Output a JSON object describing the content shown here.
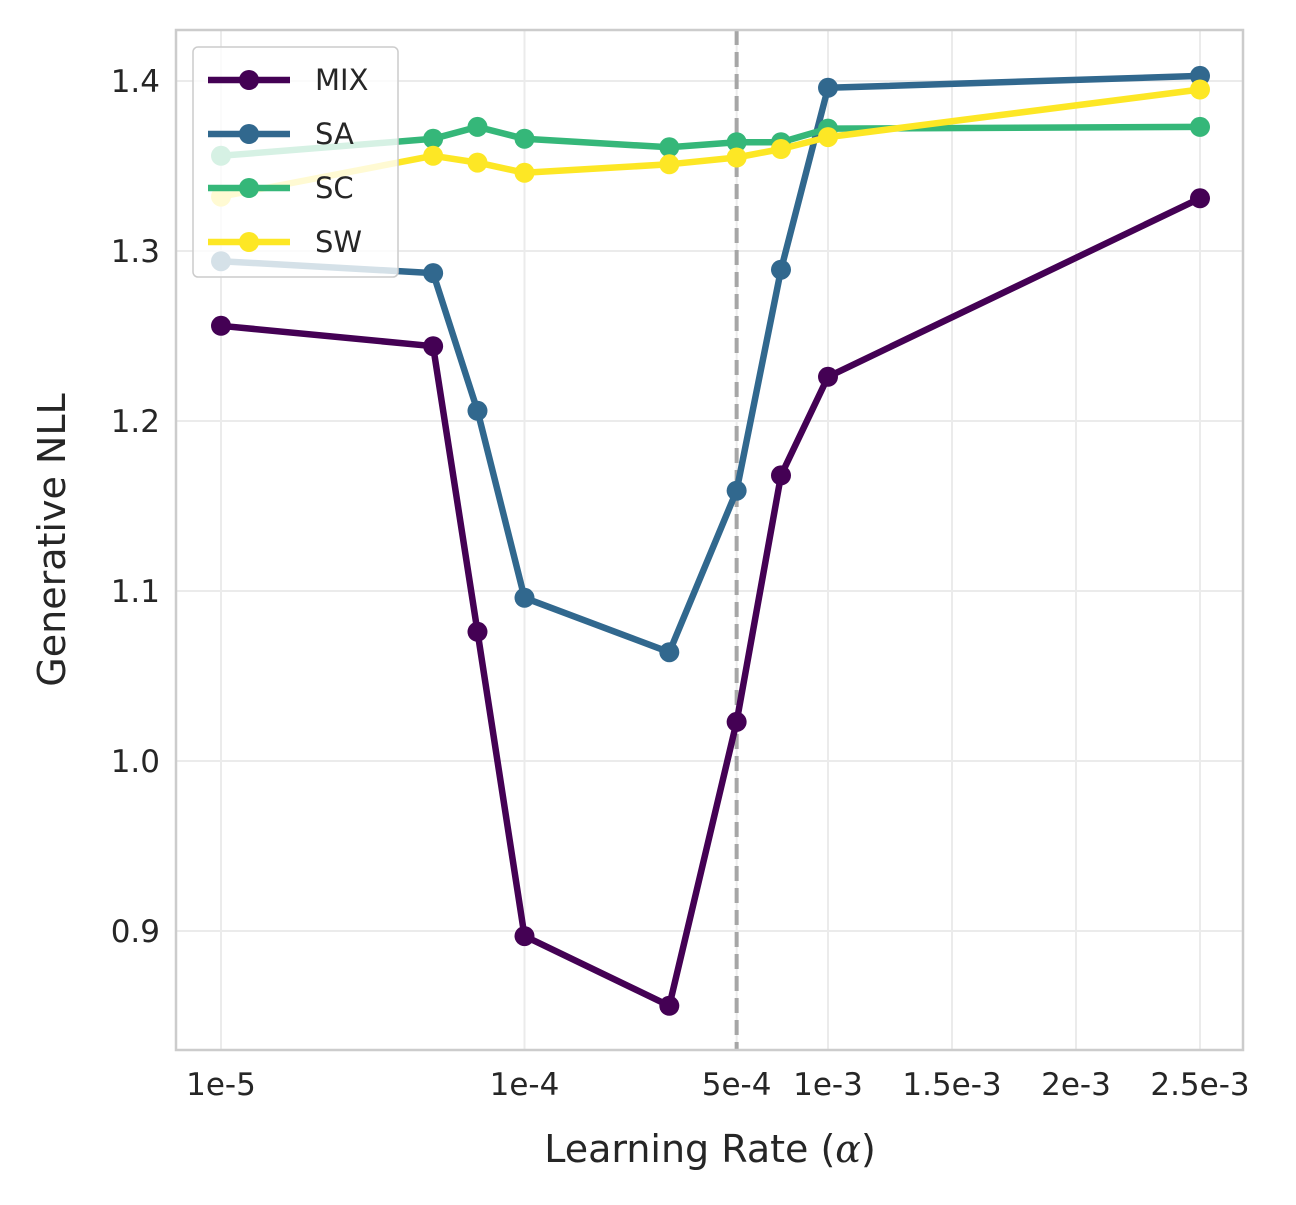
{
  "chart_data": {
    "type": "line",
    "title": "",
    "xlabel": "Learning Rate (α)",
    "xlabel_prefix": "Learning Rate (",
    "xlabel_symbol": "α",
    "xlabel_suffix": ")",
    "ylabel": "Generative NLL",
    "ylim": [
      0.83,
      1.43
    ],
    "yticks": [
      0.9,
      1.0,
      1.1,
      1.2,
      1.3,
      1.4
    ],
    "ytick_labels": [
      "0.9",
      "1.0",
      "1.1",
      "1.2",
      "1.3",
      "1.4"
    ],
    "x": [
      1e-05,
      5e-05,
      7e-05,
      0.0001,
      0.0003,
      0.0005,
      0.0007,
      0.001,
      0.0025
    ],
    "xticks": [
      1e-05,
      0.0001,
      0.0005,
      0.001,
      0.0015,
      0.002,
      0.0025
    ],
    "xtick_labels": [
      "1e-5",
      "1e-4",
      "5e-4",
      "1e-3",
      "1.5e-3",
      "2e-3",
      "2.5e-3"
    ],
    "vline": 0.0005,
    "grid": true,
    "legend_position": "top-left",
    "series": [
      {
        "name": "MIX",
        "color": "#440154",
        "values": [
          1.256,
          1.244,
          1.076,
          0.897,
          0.856,
          1.023,
          1.168,
          1.226,
          1.331
        ]
      },
      {
        "name": "SA",
        "color": "#31688e",
        "values": [
          1.294,
          1.287,
          1.206,
          1.096,
          1.064,
          1.159,
          1.289,
          1.396,
          1.403
        ]
      },
      {
        "name": "SC",
        "color": "#35b779",
        "values": [
          1.356,
          1.366,
          1.373,
          1.366,
          1.361,
          1.364,
          1.364,
          1.372,
          1.373
        ]
      },
      {
        "name": "SW",
        "color": "#fde725",
        "values": [
          1.332,
          1.356,
          1.352,
          1.346,
          1.351,
          1.355,
          1.36,
          1.367,
          1.395
        ]
      }
    ]
  }
}
